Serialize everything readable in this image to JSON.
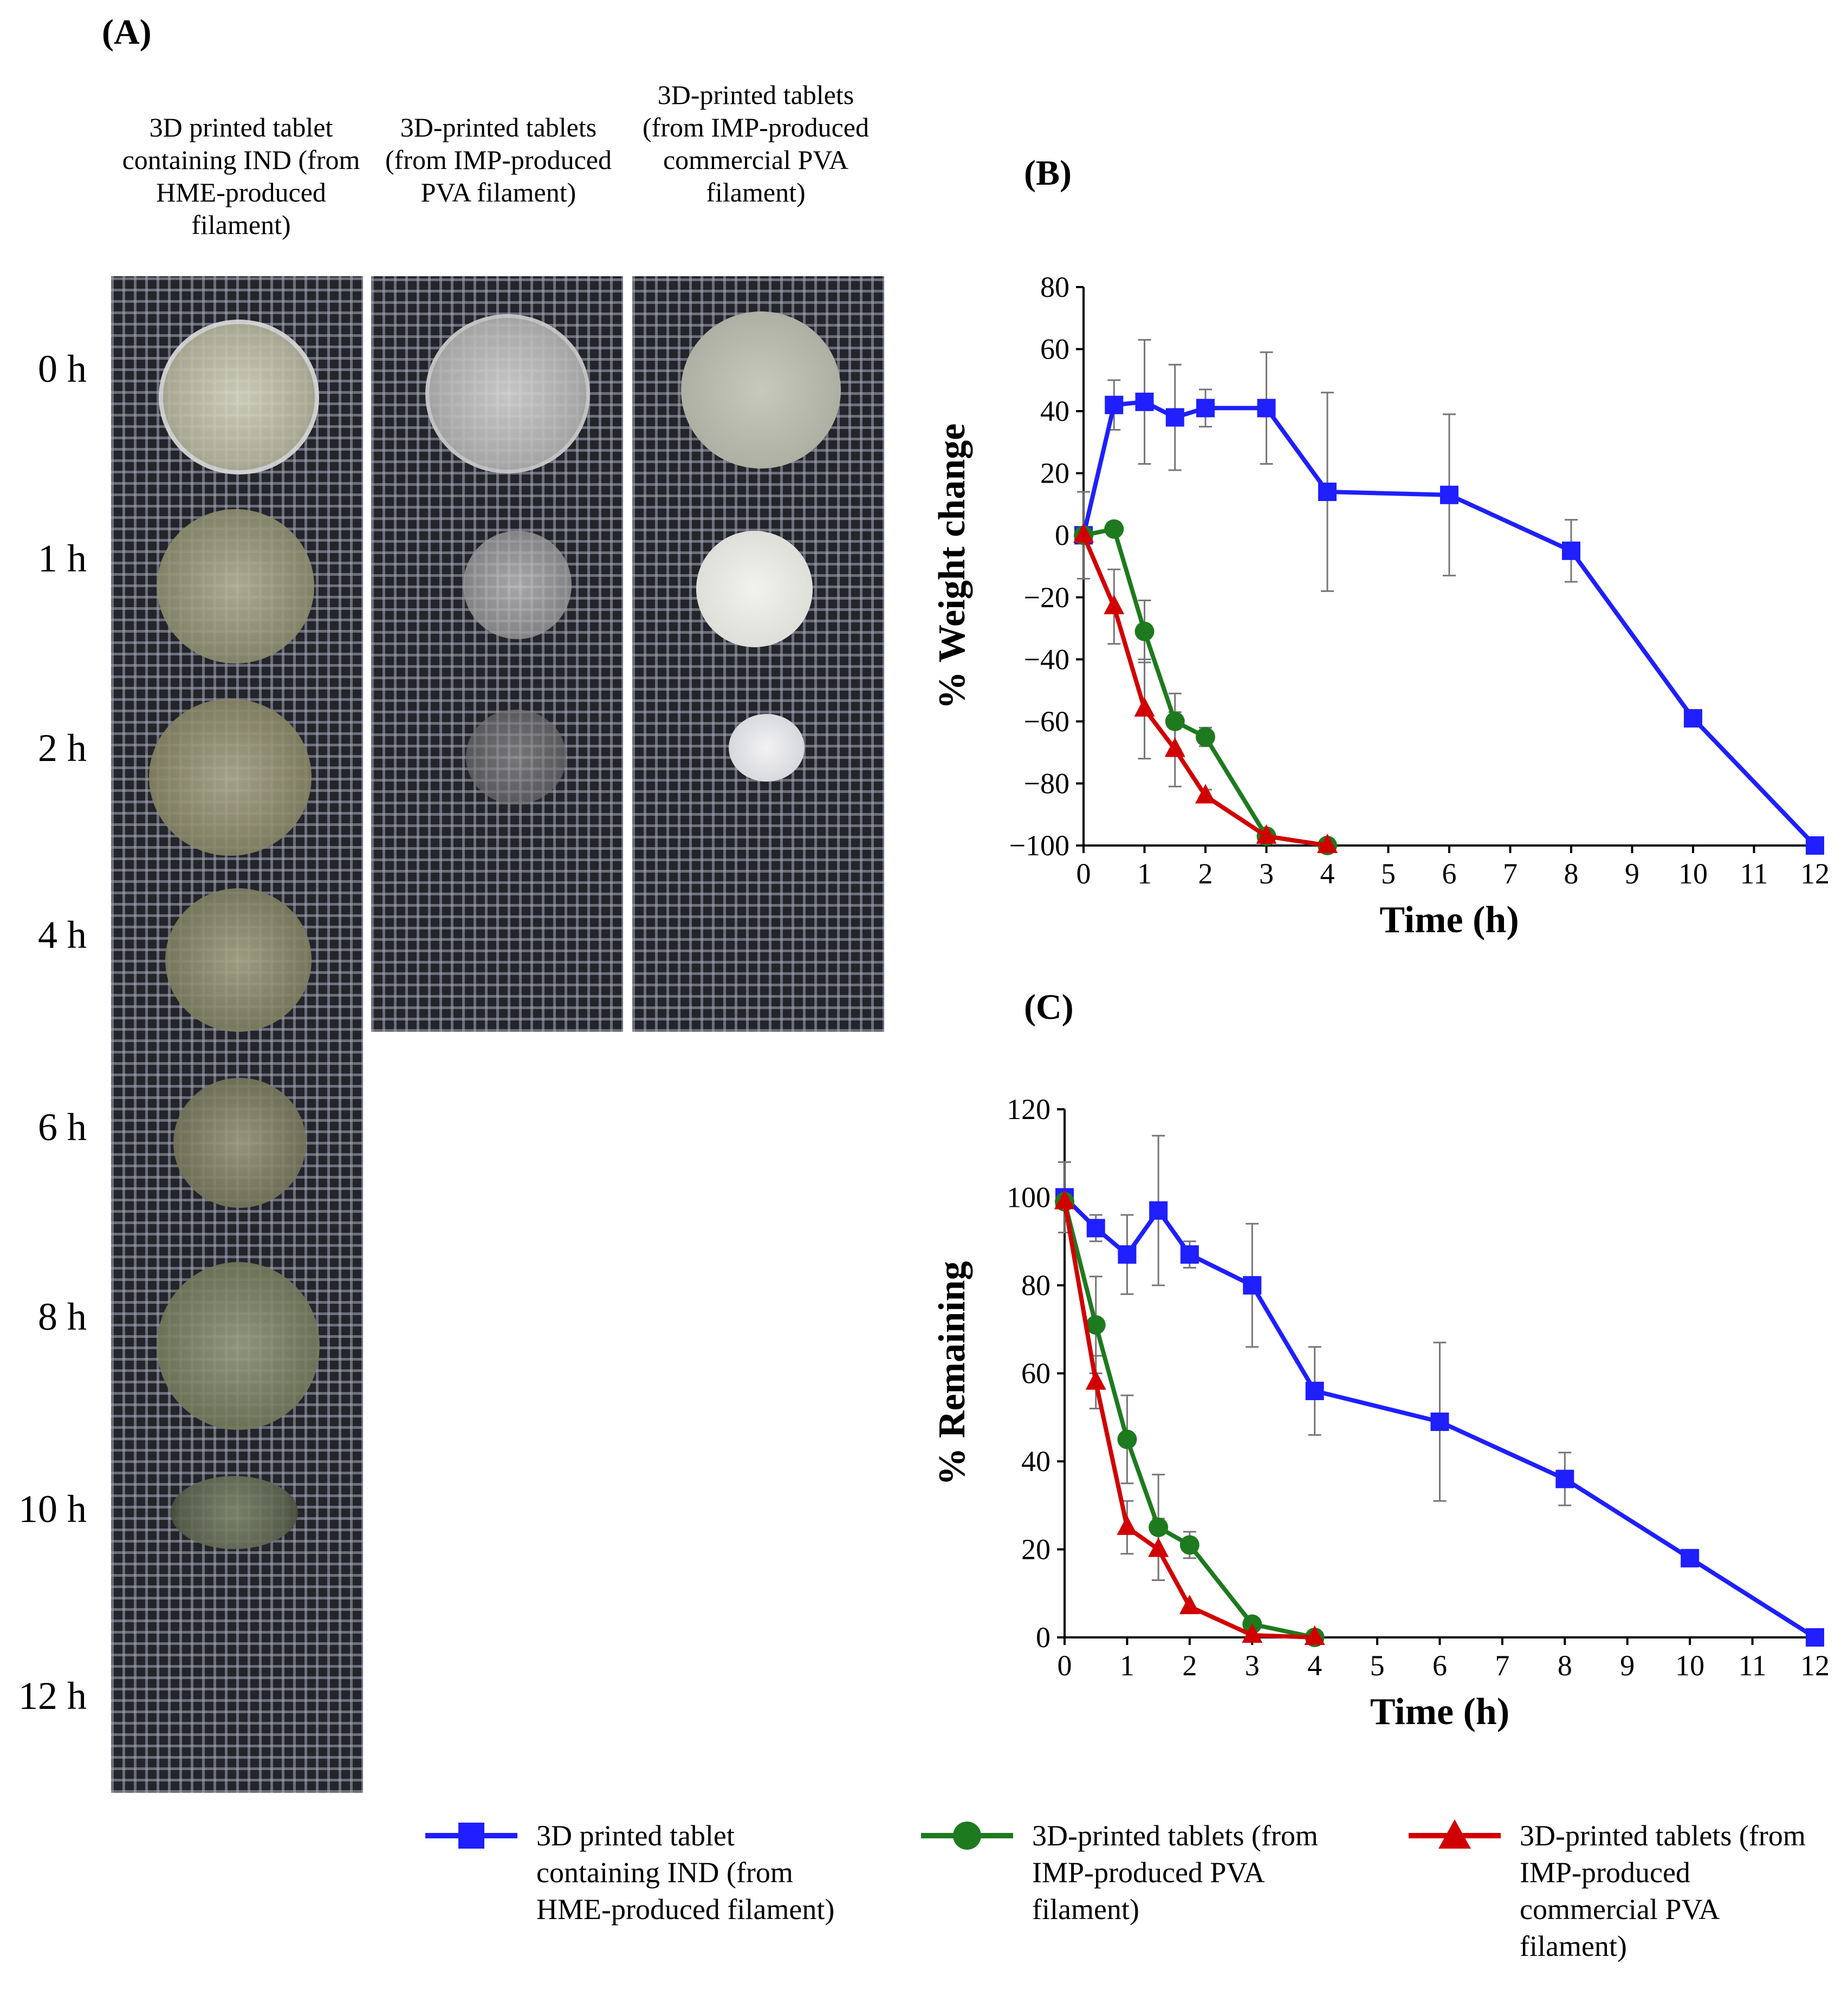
{
  "panels": {
    "a": "(A)",
    "b": "(B)",
    "c": "(C)"
  },
  "photo_columns": [
    "3D printed tablet containing IND (from HME-produced filament)",
    "3D-printed tablets (from IMP-produced PVA filament)",
    "3D-printed tablets (from IMP-produced commercial PVA filament)"
  ],
  "time_labels": [
    "0 h",
    "1 h",
    "2 h",
    "4 h",
    "6 h",
    "8 h",
    "10 h",
    "12 h"
  ],
  "legend": [
    {
      "label": "3D printed tablet containing IND (from HME-produced filament)",
      "color": "#1f1fff",
      "marker": "square"
    },
    {
      "label": "3D-printed tablets (from IMP-produced PVA filament)",
      "color": "#1e7a1e",
      "marker": "circle"
    },
    {
      "label": "3D-printed tablets (from IMP-produced commercial PVA filament)",
      "color": "#d10000",
      "marker": "triangle"
    }
  ],
  "chart_data": [
    {
      "id": "B",
      "type": "line",
      "xlabel": "Time (h)",
      "ylabel": "% Weight change",
      "xlim": [
        0,
        12
      ],
      "ylim": [
        -100,
        80
      ],
      "xticks": [
        0,
        1,
        2,
        3,
        4,
        5,
        6,
        7,
        8,
        9,
        10,
        11,
        12
      ],
      "yticks": [
        -100,
        -80,
        -60,
        -40,
        -20,
        0,
        20,
        40,
        60,
        80
      ],
      "series": [
        {
          "name": "3D printed tablet containing IND (from HME-produced filament)",
          "marker": "square",
          "color": "#1f1fff",
          "x": [
            0,
            0.5,
            1,
            1.5,
            2,
            3,
            4,
            6,
            8,
            10,
            12
          ],
          "y": [
            0,
            42,
            43,
            38,
            41,
            41,
            14,
            13,
            -5,
            -59,
            -100
          ],
          "err": [
            14,
            8,
            20,
            17,
            6,
            18,
            32,
            26,
            10,
            0,
            0
          ]
        },
        {
          "name": "3D-printed tablets (from IMP-produced PVA filament)",
          "marker": "circle",
          "color": "#1e7a1e",
          "x": [
            0,
            0.5,
            1,
            1.5,
            2,
            3,
            4
          ],
          "y": [
            0,
            2,
            -31,
            -60,
            -65,
            -97,
            -100
          ],
          "err": [
            0,
            0,
            10,
            9,
            3,
            0,
            0
          ]
        },
        {
          "name": "3D-printed tablets (from IMP-produced commercial PVA filament)",
          "marker": "triangle",
          "color": "#d10000",
          "x": [
            0,
            0.5,
            1,
            1.5,
            2,
            3,
            4
          ],
          "y": [
            0,
            -23,
            -56,
            -69,
            -84,
            -97,
            -100
          ],
          "err": [
            0,
            12,
            16,
            12,
            2,
            0,
            0
          ]
        }
      ]
    },
    {
      "id": "C",
      "type": "line",
      "xlabel": "Time (h)",
      "ylabel": "% Remaining",
      "xlim": [
        0,
        12
      ],
      "ylim": [
        0,
        120
      ],
      "xticks": [
        0,
        1,
        2,
        3,
        4,
        5,
        6,
        7,
        8,
        9,
        10,
        11,
        12
      ],
      "yticks": [
        0,
        20,
        40,
        60,
        80,
        100,
        120
      ],
      "series": [
        {
          "name": "3D printed tablet containing IND (from HME-produced filament)",
          "marker": "square",
          "color": "#1f1fff",
          "x": [
            0,
            0.5,
            1,
            1.5,
            2,
            3,
            4,
            6,
            8,
            10,
            12
          ],
          "y": [
            100,
            93,
            87,
            97,
            87,
            80,
            56,
            49,
            36,
            18,
            0
          ],
          "err": [
            8,
            3,
            9,
            17,
            3,
            14,
            10,
            18,
            6,
            0,
            0
          ]
        },
        {
          "name": "3D-printed tablets (from IMP-produced PVA filament)",
          "marker": "circle",
          "color": "#1e7a1e",
          "x": [
            0,
            0.5,
            1,
            1.5,
            2,
            3,
            4
          ],
          "y": [
            99,
            71,
            45,
            25,
            21,
            3,
            0
          ],
          "err": [
            0,
            11,
            10,
            12,
            3,
            0,
            0
          ]
        },
        {
          "name": "3D-printed tablets (from IMP-produced commercial PVA filament)",
          "marker": "triangle",
          "color": "#d10000",
          "x": [
            0,
            0.5,
            1,
            1.5,
            2,
            3,
            4
          ],
          "y": [
            99,
            58,
            25,
            20,
            7,
            0.5,
            0
          ],
          "err": [
            0,
            6,
            6,
            7,
            0,
            0,
            0
          ]
        }
      ]
    }
  ]
}
